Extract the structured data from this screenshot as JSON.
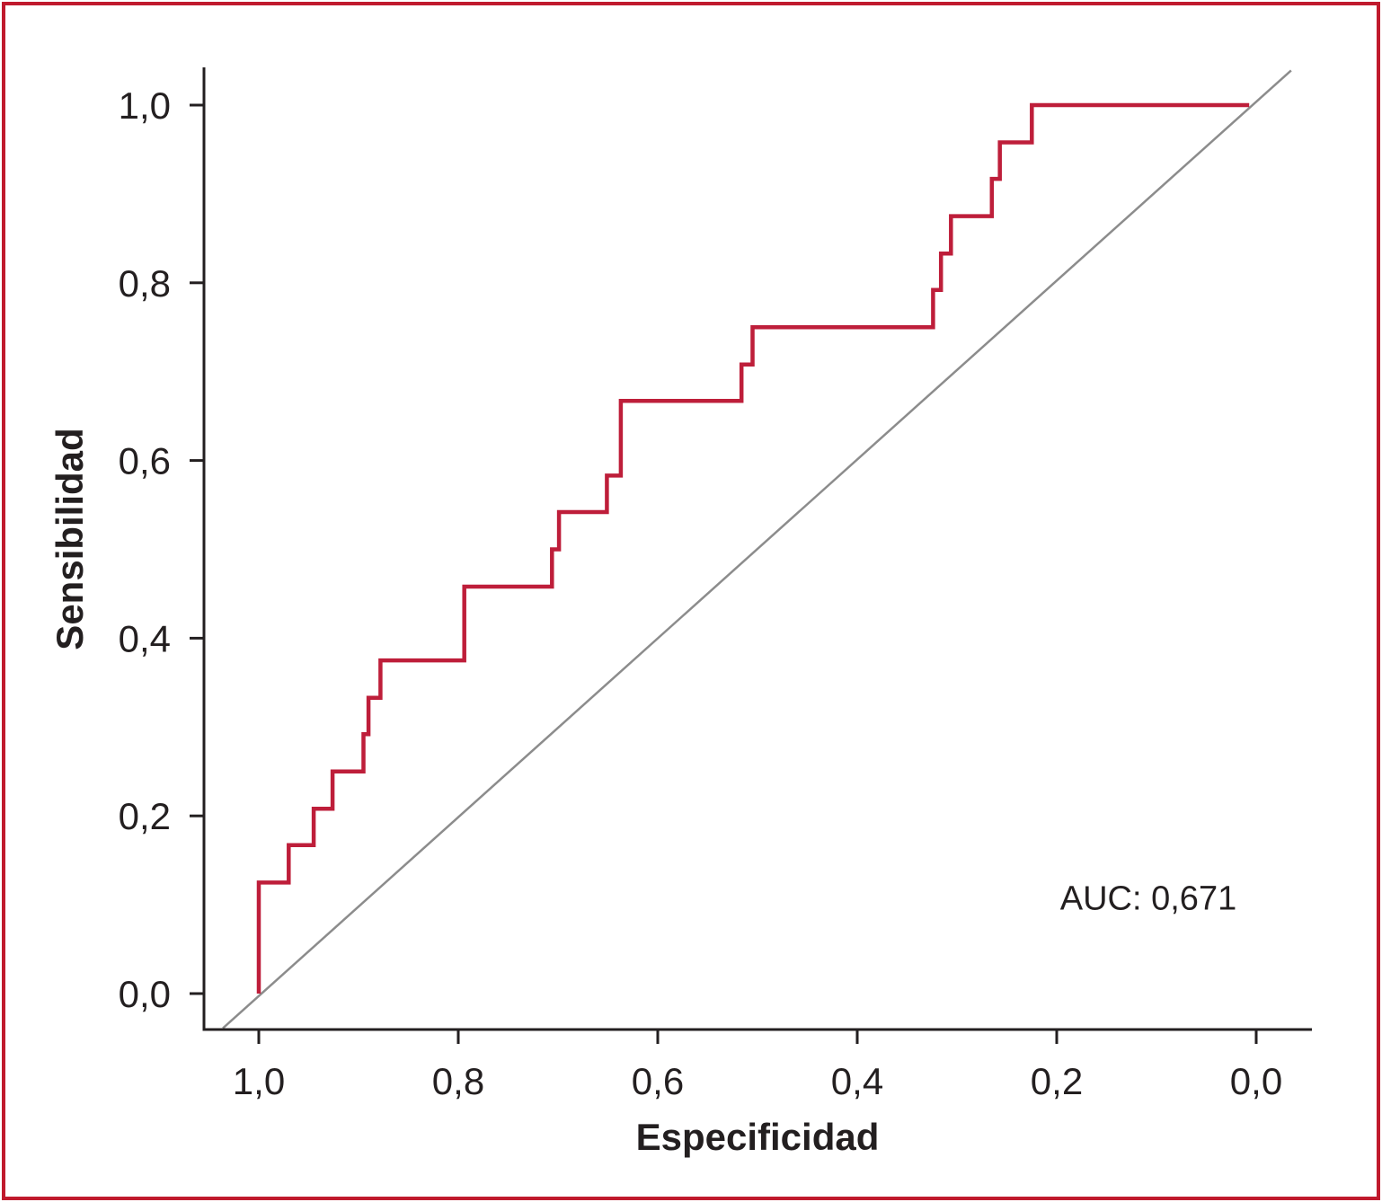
{
  "figure": {
    "background": "#ffffff",
    "border_color": "#c01a2d",
    "text_color": "#231f20"
  },
  "chart_data": {
    "type": "line",
    "subtype": "roc-step-curve",
    "title": "",
    "xlabel": "Especificidad",
    "ylabel": "Sensibilidad",
    "annotation": "AUC: 0,671",
    "auc": 0.671,
    "grid": false,
    "legend": false,
    "x_axis": {
      "min": 0.0,
      "max": 1.0,
      "reversed": true,
      "tick_values": [
        1.0,
        0.8,
        0.6,
        0.4,
        0.2,
        0.0
      ],
      "tick_labels": [
        "1,0",
        "0,8",
        "0,6",
        "0,4",
        "0,2",
        "0,0"
      ]
    },
    "y_axis": {
      "min": 0.0,
      "max": 1.0,
      "tick_values": [
        0.0,
        0.2,
        0.4,
        0.6,
        0.8,
        1.0
      ],
      "tick_labels": [
        "0,0",
        "0,2",
        "0,4",
        "0,6",
        "0,8",
        "1,0"
      ]
    },
    "roc_curve": {
      "color": "#be1e3a",
      "stroke_width": 4.5,
      "points_spec_sens": [
        [
          1.0,
          0.0
        ],
        [
          1.0,
          0.125
        ],
        [
          0.97,
          0.125
        ],
        [
          0.97,
          0.167
        ],
        [
          0.945,
          0.167
        ],
        [
          0.945,
          0.208
        ],
        [
          0.926,
          0.208
        ],
        [
          0.926,
          0.25
        ],
        [
          0.895,
          0.25
        ],
        [
          0.895,
          0.292
        ],
        [
          0.89,
          0.292
        ],
        [
          0.89,
          0.333
        ],
        [
          0.878,
          0.333
        ],
        [
          0.878,
          0.375
        ],
        [
          0.794,
          0.375
        ],
        [
          0.794,
          0.458
        ],
        [
          0.706,
          0.458
        ],
        [
          0.706,
          0.5
        ],
        [
          0.699,
          0.5
        ],
        [
          0.699,
          0.542
        ],
        [
          0.651,
          0.542
        ],
        [
          0.651,
          0.583
        ],
        [
          0.637,
          0.583
        ],
        [
          0.637,
          0.667
        ],
        [
          0.516,
          0.667
        ],
        [
          0.516,
          0.708
        ],
        [
          0.505,
          0.708
        ],
        [
          0.505,
          0.75
        ],
        [
          0.324,
          0.75
        ],
        [
          0.324,
          0.792
        ],
        [
          0.316,
          0.792
        ],
        [
          0.316,
          0.833
        ],
        [
          0.306,
          0.833
        ],
        [
          0.306,
          0.875
        ],
        [
          0.265,
          0.875
        ],
        [
          0.265,
          0.917
        ],
        [
          0.257,
          0.917
        ],
        [
          0.257,
          0.958
        ],
        [
          0.225,
          0.958
        ],
        [
          0.225,
          1.0
        ],
        [
          0.007,
          1.0
        ]
      ]
    },
    "reference_line": {
      "color": "#8c8c8c",
      "stroke_width": 2.5,
      "points_spec_sens": [
        [
          1.036,
          -0.039
        ],
        [
          -0.035,
          1.039
        ]
      ]
    }
  }
}
